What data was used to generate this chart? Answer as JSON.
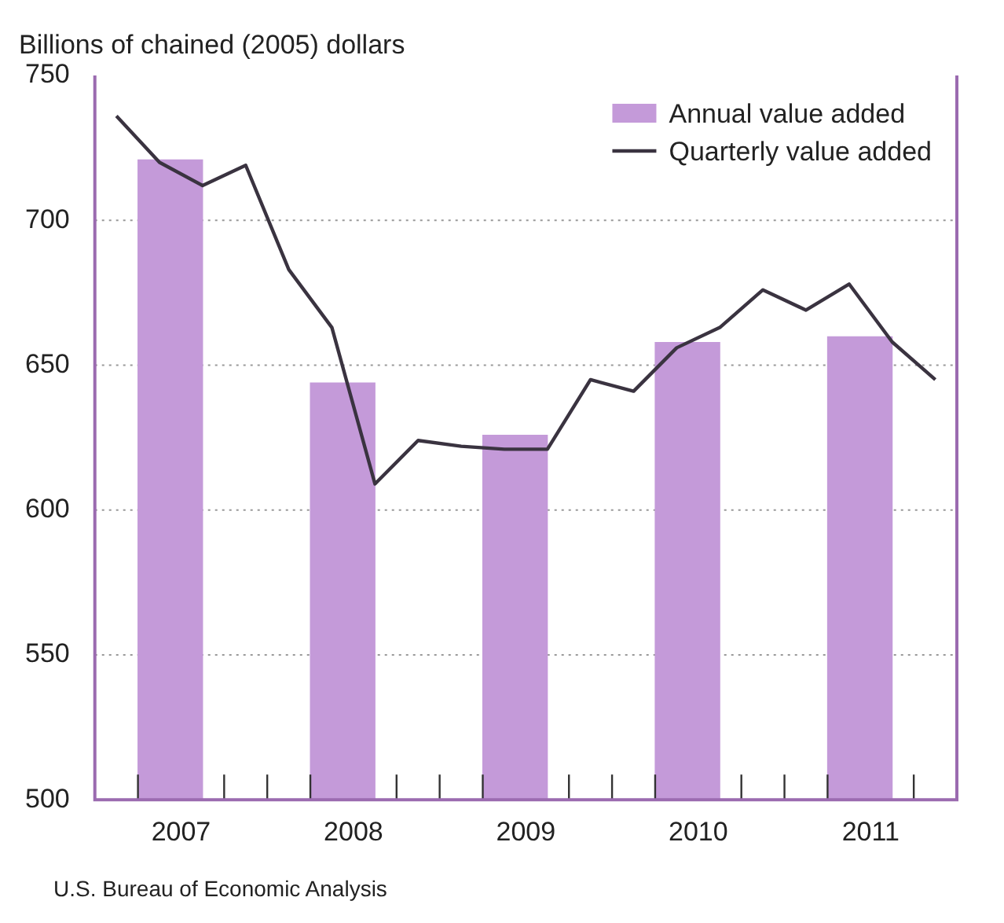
{
  "chart_data": {
    "type": "bar",
    "ylabel": "Billions of chained (2005) dollars",
    "annotations": [
      "U.S. Bureau of Economic Analysis"
    ],
    "xlim": [
      2007,
      2012
    ],
    "xticks": [
      {
        "value": 2007.25,
        "label": null
      },
      {
        "value": 2007.5,
        "label": "2007"
      },
      {
        "value": 2007.75,
        "label": null
      },
      {
        "value": 2008,
        "label": null
      },
      {
        "value": 2008.25,
        "label": null
      },
      {
        "value": 2008.5,
        "label": "2008"
      },
      {
        "value": 2008.75,
        "label": null
      },
      {
        "value": 2009,
        "label": null
      },
      {
        "value": 2009.25,
        "label": null
      },
      {
        "value": 2009.5,
        "label": "2009"
      },
      {
        "value": 2009.75,
        "label": null
      },
      {
        "value": 2010,
        "label": null
      },
      {
        "value": 2010.25,
        "label": null
      },
      {
        "value": 2010.5,
        "label": "2010"
      },
      {
        "value": 2010.75,
        "label": null
      },
      {
        "value": 2011,
        "label": null
      },
      {
        "value": 2011.25,
        "label": null
      },
      {
        "value": 2011.5,
        "label": "2011"
      },
      {
        "value": 2011.75,
        "label": null
      }
    ],
    "ylim": [
      500,
      750
    ],
    "yticks": [
      500,
      550,
      600,
      650,
      700,
      750
    ],
    "grid": "y",
    "legend": "top right",
    "series": [
      {
        "name": "Annual value added",
        "type": "bar",
        "color": "#c49ad9",
        "x": [
          2007.5,
          2008.5,
          2009.5,
          2010.5,
          2011.5
        ],
        "values": [
          721,
          644,
          626,
          658,
          660
        ]
      },
      {
        "name": "Quarterly value added",
        "type": "line",
        "color": "#3a3340",
        "marker": "none",
        "x": [
          2007.125,
          2007.375,
          2007.625,
          2007.875,
          2008.125,
          2008.375,
          2008.625,
          2008.875,
          2009.125,
          2009.375,
          2009.625,
          2009.875,
          2010.125,
          2010.375,
          2010.625,
          2010.875,
          2011.125,
          2011.375,
          2011.625,
          2011.875
        ],
        "values": [
          736,
          720,
          712,
          719,
          683,
          663,
          609,
          624,
          622,
          621,
          621,
          645,
          641,
          656,
          663,
          676,
          669,
          678,
          658,
          645
        ]
      }
    ]
  }
}
